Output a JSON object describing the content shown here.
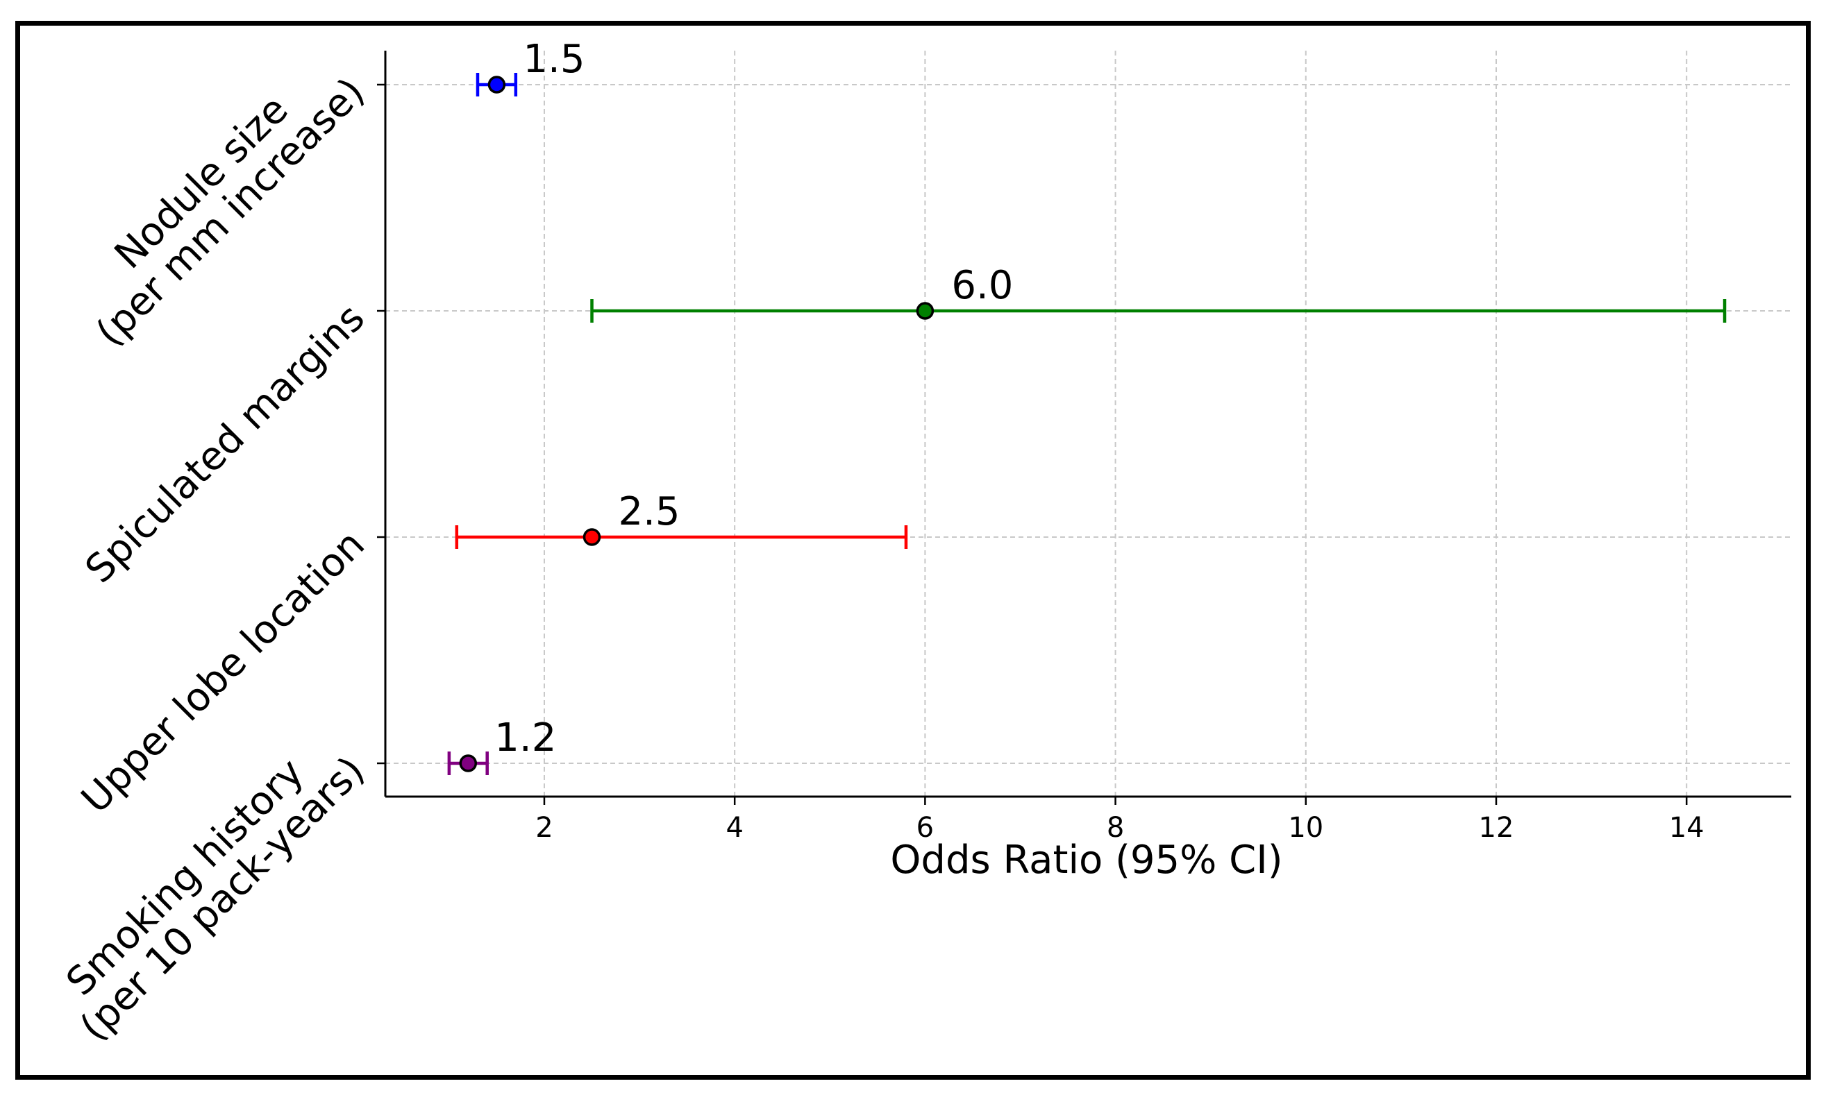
{
  "chart_data": {
    "type": "forest",
    "xlabel": "Odds Ratio (95% CI)",
    "ylabel": "",
    "title": "",
    "xlim": [
      0.33,
      15.1
    ],
    "xticks": [
      2,
      4,
      6,
      8,
      10,
      12,
      14
    ],
    "grid": true,
    "rows": [
      {
        "label_lines": [
          "Nodule size",
          "(per mm increase)"
        ],
        "or": 1.5,
        "ci_low": 1.3,
        "ci_high": 1.7,
        "value_label": "1.5",
        "color": "#0000ff"
      },
      {
        "label_lines": [
          "Spiculated margins"
        ],
        "or": 6.0,
        "ci_low": 2.5,
        "ci_high": 14.4,
        "value_label": "6.0",
        "color": "#008000"
      },
      {
        "label_lines": [
          "Upper lobe location"
        ],
        "or": 2.5,
        "ci_low": 1.08,
        "ci_high": 5.8,
        "value_label": "2.5",
        "color": "#ff0000"
      },
      {
        "label_lines": [
          "Smoking history",
          "(per 10 pack-years)"
        ],
        "or": 1.2,
        "ci_low": 1.0,
        "ci_high": 1.4,
        "value_label": "1.2",
        "color": "#800080"
      }
    ]
  }
}
